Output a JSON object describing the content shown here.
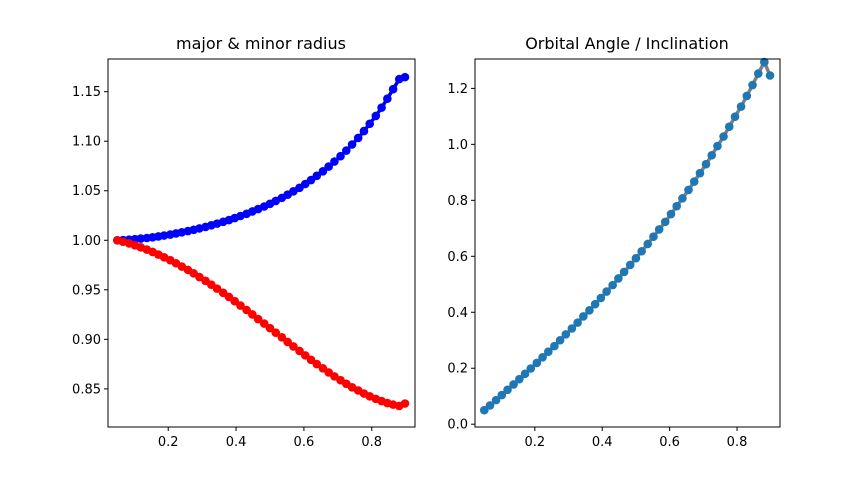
{
  "chart_data": [
    {
      "type": "scatter",
      "title": "major & minor radius",
      "xlabel": "",
      "ylabel": "",
      "xlim": [
        0.0225,
        0.9275
      ],
      "ylim": [
        0.8115,
        1.183
      ],
      "xticks": [
        0.2,
        0.4,
        0.6,
        0.8
      ],
      "yticks": [
        0.85,
        0.9,
        0.95,
        1.0,
        1.05,
        1.1,
        1.15
      ],
      "xtick_labels": [
        "0.2",
        "0.4",
        "0.6",
        "0.8"
      ],
      "ytick_labels": [
        "0.85",
        "0.90",
        "0.95",
        "1.00",
        "1.05",
        "1.10",
        "1.15"
      ],
      "grid": false,
      "x": [
        0.05,
        0.067,
        0.085,
        0.102,
        0.119,
        0.137,
        0.154,
        0.171,
        0.188,
        0.206,
        0.223,
        0.24,
        0.258,
        0.275,
        0.292,
        0.31,
        0.327,
        0.344,
        0.362,
        0.379,
        0.396,
        0.413,
        0.431,
        0.448,
        0.465,
        0.483,
        0.5,
        0.517,
        0.535,
        0.552,
        0.569,
        0.587,
        0.604,
        0.621,
        0.638,
        0.656,
        0.673,
        0.69,
        0.708,
        0.725,
        0.742,
        0.76,
        0.777,
        0.794,
        0.812,
        0.829,
        0.846,
        0.863,
        0.881,
        0.898
      ],
      "series": [
        {
          "color": "#0000ff",
          "line_color": "#0000cc",
          "values": [
            1.0,
            1.0002,
            1.0006,
            1.0011,
            1.0017,
            1.0023,
            1.003,
            1.0039,
            1.0048,
            1.0058,
            1.0069,
            1.008,
            1.0093,
            1.0106,
            1.012,
            1.0135,
            1.0151,
            1.0168,
            1.0186,
            1.0204,
            1.0224,
            1.0245,
            1.0267,
            1.0291,
            1.0315,
            1.0341,
            1.0368,
            1.0397,
            1.0428,
            1.046,
            1.0494,
            1.053,
            1.0568,
            1.0608,
            1.0651,
            1.0696,
            1.0744,
            1.0795,
            1.0849,
            1.0906,
            1.0967,
            1.1033,
            1.1102,
            1.1176,
            1.1255,
            1.1339,
            1.1429,
            1.1525,
            1.1627,
            1.1647
          ]
        },
        {
          "color": "#ff0000",
          "line_color": "#ff0000",
          "values": [
            1.0,
            0.9985,
            0.9968,
            0.9949,
            0.9929,
            0.9906,
            0.9882,
            0.9856,
            0.9828,
            0.9799,
            0.9768,
            0.9735,
            0.9701,
            0.9666,
            0.9629,
            0.9591,
            0.9552,
            0.9512,
            0.947,
            0.9428,
            0.9385,
            0.9341,
            0.9296,
            0.9251,
            0.9205,
            0.9159,
            0.9113,
            0.9067,
            0.902,
            0.8974,
            0.8928,
            0.8883,
            0.8838,
            0.8793,
            0.875,
            0.8707,
            0.8666,
            0.8626,
            0.8588,
            0.8551,
            0.8516,
            0.8484,
            0.8453,
            0.8425,
            0.8399,
            0.8377,
            0.8357,
            0.8341,
            0.8328,
            0.8352
          ]
        }
      ]
    },
    {
      "type": "scatter",
      "title": "Orbital Angle / Inclination",
      "xlabel": "",
      "ylabel": "",
      "xlim": [
        0.0225,
        0.9275
      ],
      "ylim": [
        -0.01,
        1.305
      ],
      "xticks": [
        0.2,
        0.4,
        0.6,
        0.8
      ],
      "yticks": [
        0.0,
        0.2,
        0.4,
        0.6,
        0.8,
        1.0,
        1.2
      ],
      "xtick_labels": [
        "0.2",
        "0.4",
        "0.6",
        "0.8"
      ],
      "ytick_labels": [
        "0.0",
        "0.2",
        "0.4",
        "0.6",
        "0.8",
        "1.0",
        "1.2"
      ],
      "grid": false,
      "x": [
        0.05,
        0.067,
        0.085,
        0.102,
        0.119,
        0.137,
        0.154,
        0.171,
        0.188,
        0.206,
        0.223,
        0.24,
        0.258,
        0.275,
        0.292,
        0.31,
        0.327,
        0.344,
        0.362,
        0.379,
        0.396,
        0.413,
        0.431,
        0.448,
        0.465,
        0.483,
        0.5,
        0.517,
        0.535,
        0.552,
        0.569,
        0.587,
        0.604,
        0.621,
        0.638,
        0.656,
        0.673,
        0.69,
        0.708,
        0.725,
        0.742,
        0.76,
        0.777,
        0.794,
        0.812,
        0.829,
        0.846,
        0.863,
        0.881,
        0.898
      ],
      "series": [
        {
          "color": "#1f77b4",
          "line_color": "#7f7f7f",
          "values": [
            0.05,
            0.067,
            0.086,
            0.104,
            0.123,
            0.142,
            0.161,
            0.18,
            0.199,
            0.219,
            0.239,
            0.259,
            0.279,
            0.3,
            0.321,
            0.342,
            0.363,
            0.385,
            0.407,
            0.429,
            0.451,
            0.474,
            0.497,
            0.521,
            0.544,
            0.569,
            0.593,
            0.618,
            0.644,
            0.67,
            0.696,
            0.723,
            0.751,
            0.779,
            0.807,
            0.837,
            0.867,
            0.897,
            0.929,
            0.961,
            0.994,
            1.028,
            1.063,
            1.099,
            1.135,
            1.173,
            1.212,
            1.253,
            1.294,
            1.246
          ]
        }
      ]
    }
  ]
}
